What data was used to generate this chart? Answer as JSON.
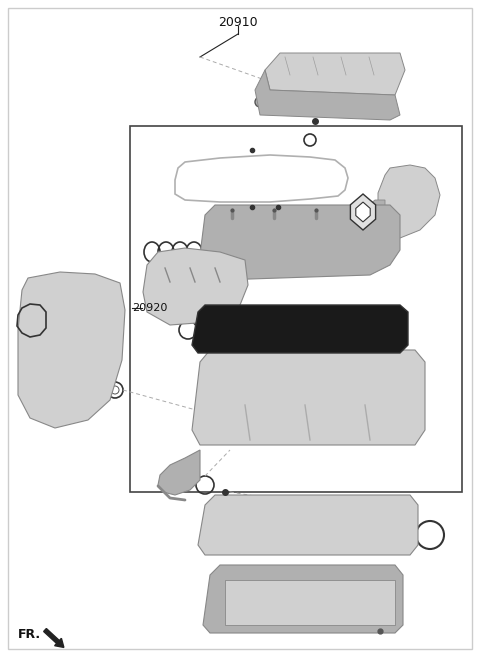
{
  "title": "20910",
  "label_20920": "20920",
  "label_fr": "FR.",
  "bg_color": "#f5f5f5",
  "white": "#ffffff",
  "border_color": "#222222",
  "dashed_color": "#aaaaaa",
  "text_color": "#111111",
  "pc_l": "#d0d0d0",
  "pc_m": "#b0b0b0",
  "pc_d": "#888888",
  "pc_dk": "#555555",
  "gasket_dark": "#1a1a1a",
  "gasket_mid": "#333333",
  "figsize": [
    4.8,
    6.57
  ],
  "dpi": 100
}
